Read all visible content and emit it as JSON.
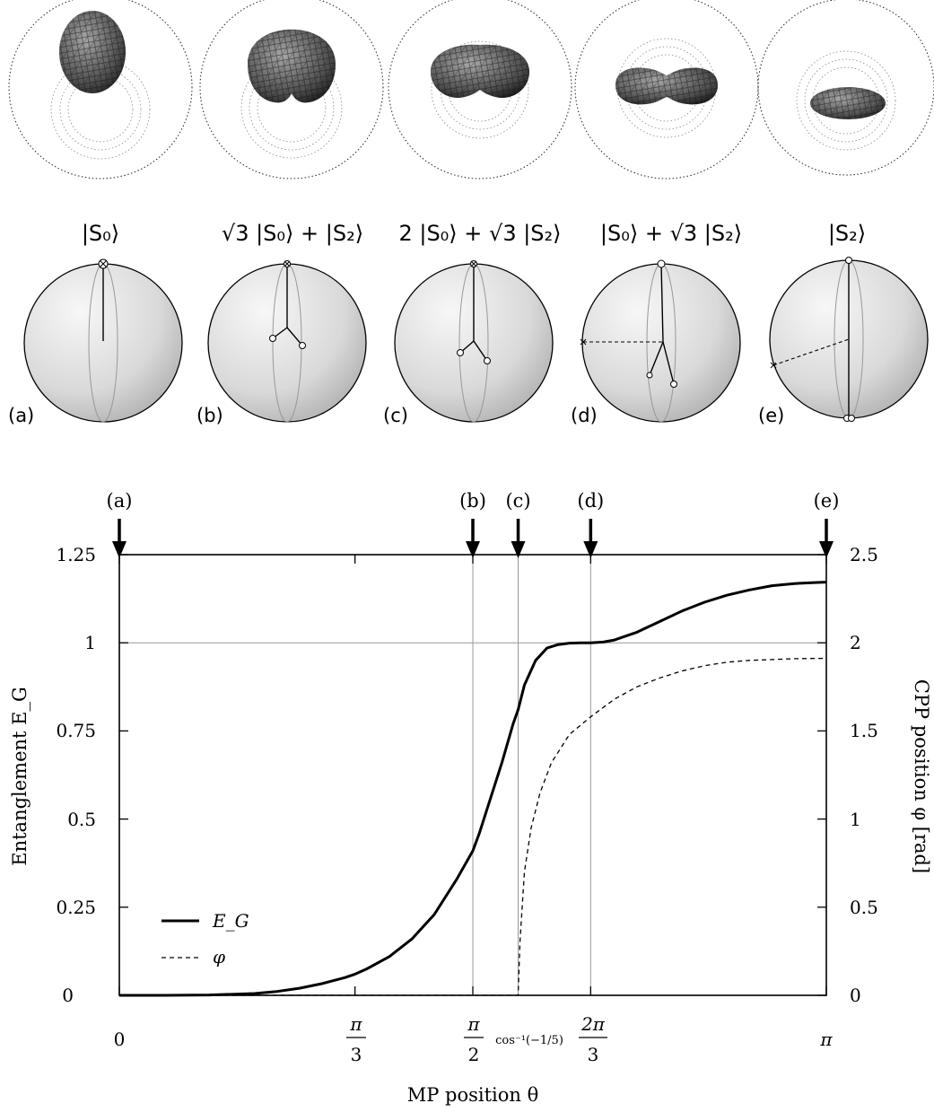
{
  "states": [
    {
      "panel": "(a)",
      "ket": "|S₀⟩"
    },
    {
      "panel": "(b)",
      "ket": "√3 |S₀⟩ + |S₂⟩"
    },
    {
      "panel": "(c)",
      "ket": "2 |S₀⟩ + √3 |S₂⟩"
    },
    {
      "panel": "(d)",
      "ket": "|S₀⟩ + √3 |S₂⟩"
    },
    {
      "panel": "(e)",
      "ket": "|S₂⟩"
    }
  ],
  "chart_data": {
    "type": "line",
    "xlabel": "MP position θ",
    "ylabel_left": "Entanglement E_G",
    "ylabel_right": "CPP position φ [rad]",
    "xlim": [
      0,
      3.14159
    ],
    "ylim_left": [
      0,
      1.25
    ],
    "ylim_right": [
      0,
      2.5
    ],
    "x_ticks": [
      {
        "value": 0,
        "num": "0",
        "den": ""
      },
      {
        "value": 1.0472,
        "num": "π",
        "den": "3"
      },
      {
        "value": 1.5708,
        "num": "π",
        "den": "2"
      },
      {
        "value": 2.0944,
        "num": "2π",
        "den": "3"
      },
      {
        "value": 3.14159,
        "num": "π",
        "den": ""
      }
    ],
    "extra_x_label": {
      "value": 1.7722,
      "text": "cos⁻¹(−1/5)"
    },
    "y_ticks_left": [
      "0",
      "0.25",
      "0.5",
      "0.75",
      "1",
      "1.25"
    ],
    "y_ticks_left_values": [
      0,
      0.25,
      0.5,
      0.75,
      1,
      1.25
    ],
    "y_ticks_right": [
      "0",
      "0.5",
      "1",
      "1.5",
      "2",
      "2.5"
    ],
    "y_ticks_right_values": [
      0,
      0.5,
      1,
      1.5,
      2,
      2.5
    ],
    "markers": [
      {
        "label": "(a)",
        "x": 0
      },
      {
        "label": "(b)",
        "x": 1.5708
      },
      {
        "label": "(c)",
        "x": 1.7722
      },
      {
        "label": "(d)",
        "x": 2.0944
      },
      {
        "label": "(e)",
        "x": 3.14159
      }
    ],
    "gridlines": {
      "x": [
        1.5708,
        1.7722,
        2.0944
      ],
      "y_left": [
        1
      ]
    },
    "series": [
      {
        "name": "E_G",
        "axis": "left",
        "style": "solid",
        "x": [
          0,
          0.2,
          0.4,
          0.6,
          0.7,
          0.8,
          0.9,
          1.0,
          1.0472,
          1.1,
          1.2,
          1.3,
          1.4,
          1.5,
          1.5708,
          1.6,
          1.7,
          1.75,
          1.7722,
          1.8,
          1.85,
          1.9,
          1.95,
          2.0,
          2.05,
          2.0944,
          2.15,
          2.2,
          2.3,
          2.4,
          2.5,
          2.6,
          2.7,
          2.8,
          2.9,
          3.0,
          3.1,
          3.14159
        ],
        "values": [
          0,
          0.0001,
          0.001,
          0.005,
          0.011,
          0.02,
          0.033,
          0.05,
          0.06,
          0.075,
          0.11,
          0.16,
          0.23,
          0.33,
          0.41,
          0.46,
          0.66,
          0.77,
          0.81,
          0.88,
          0.95,
          0.985,
          0.995,
          0.999,
          1.0,
          1.0,
          1.002,
          1.008,
          1.03,
          1.06,
          1.09,
          1.115,
          1.135,
          1.15,
          1.162,
          1.168,
          1.171,
          1.172
        ]
      },
      {
        "name": "φ",
        "axis": "right",
        "style": "dashed",
        "x": [
          0,
          1.772,
          1.7722,
          1.78,
          1.79,
          1.8,
          1.83,
          1.87,
          1.92,
          2.0,
          2.0944,
          2.2,
          2.3,
          2.4,
          2.5,
          2.6,
          2.7,
          2.8,
          2.9,
          3.0,
          3.14159
        ],
        "values": [
          0,
          0,
          0.0,
          0.3,
          0.5,
          0.7,
          0.95,
          1.15,
          1.32,
          1.48,
          1.58,
          1.68,
          1.75,
          1.8,
          1.84,
          1.87,
          1.89,
          1.9,
          1.905,
          1.91,
          1.912
        ]
      }
    ]
  }
}
